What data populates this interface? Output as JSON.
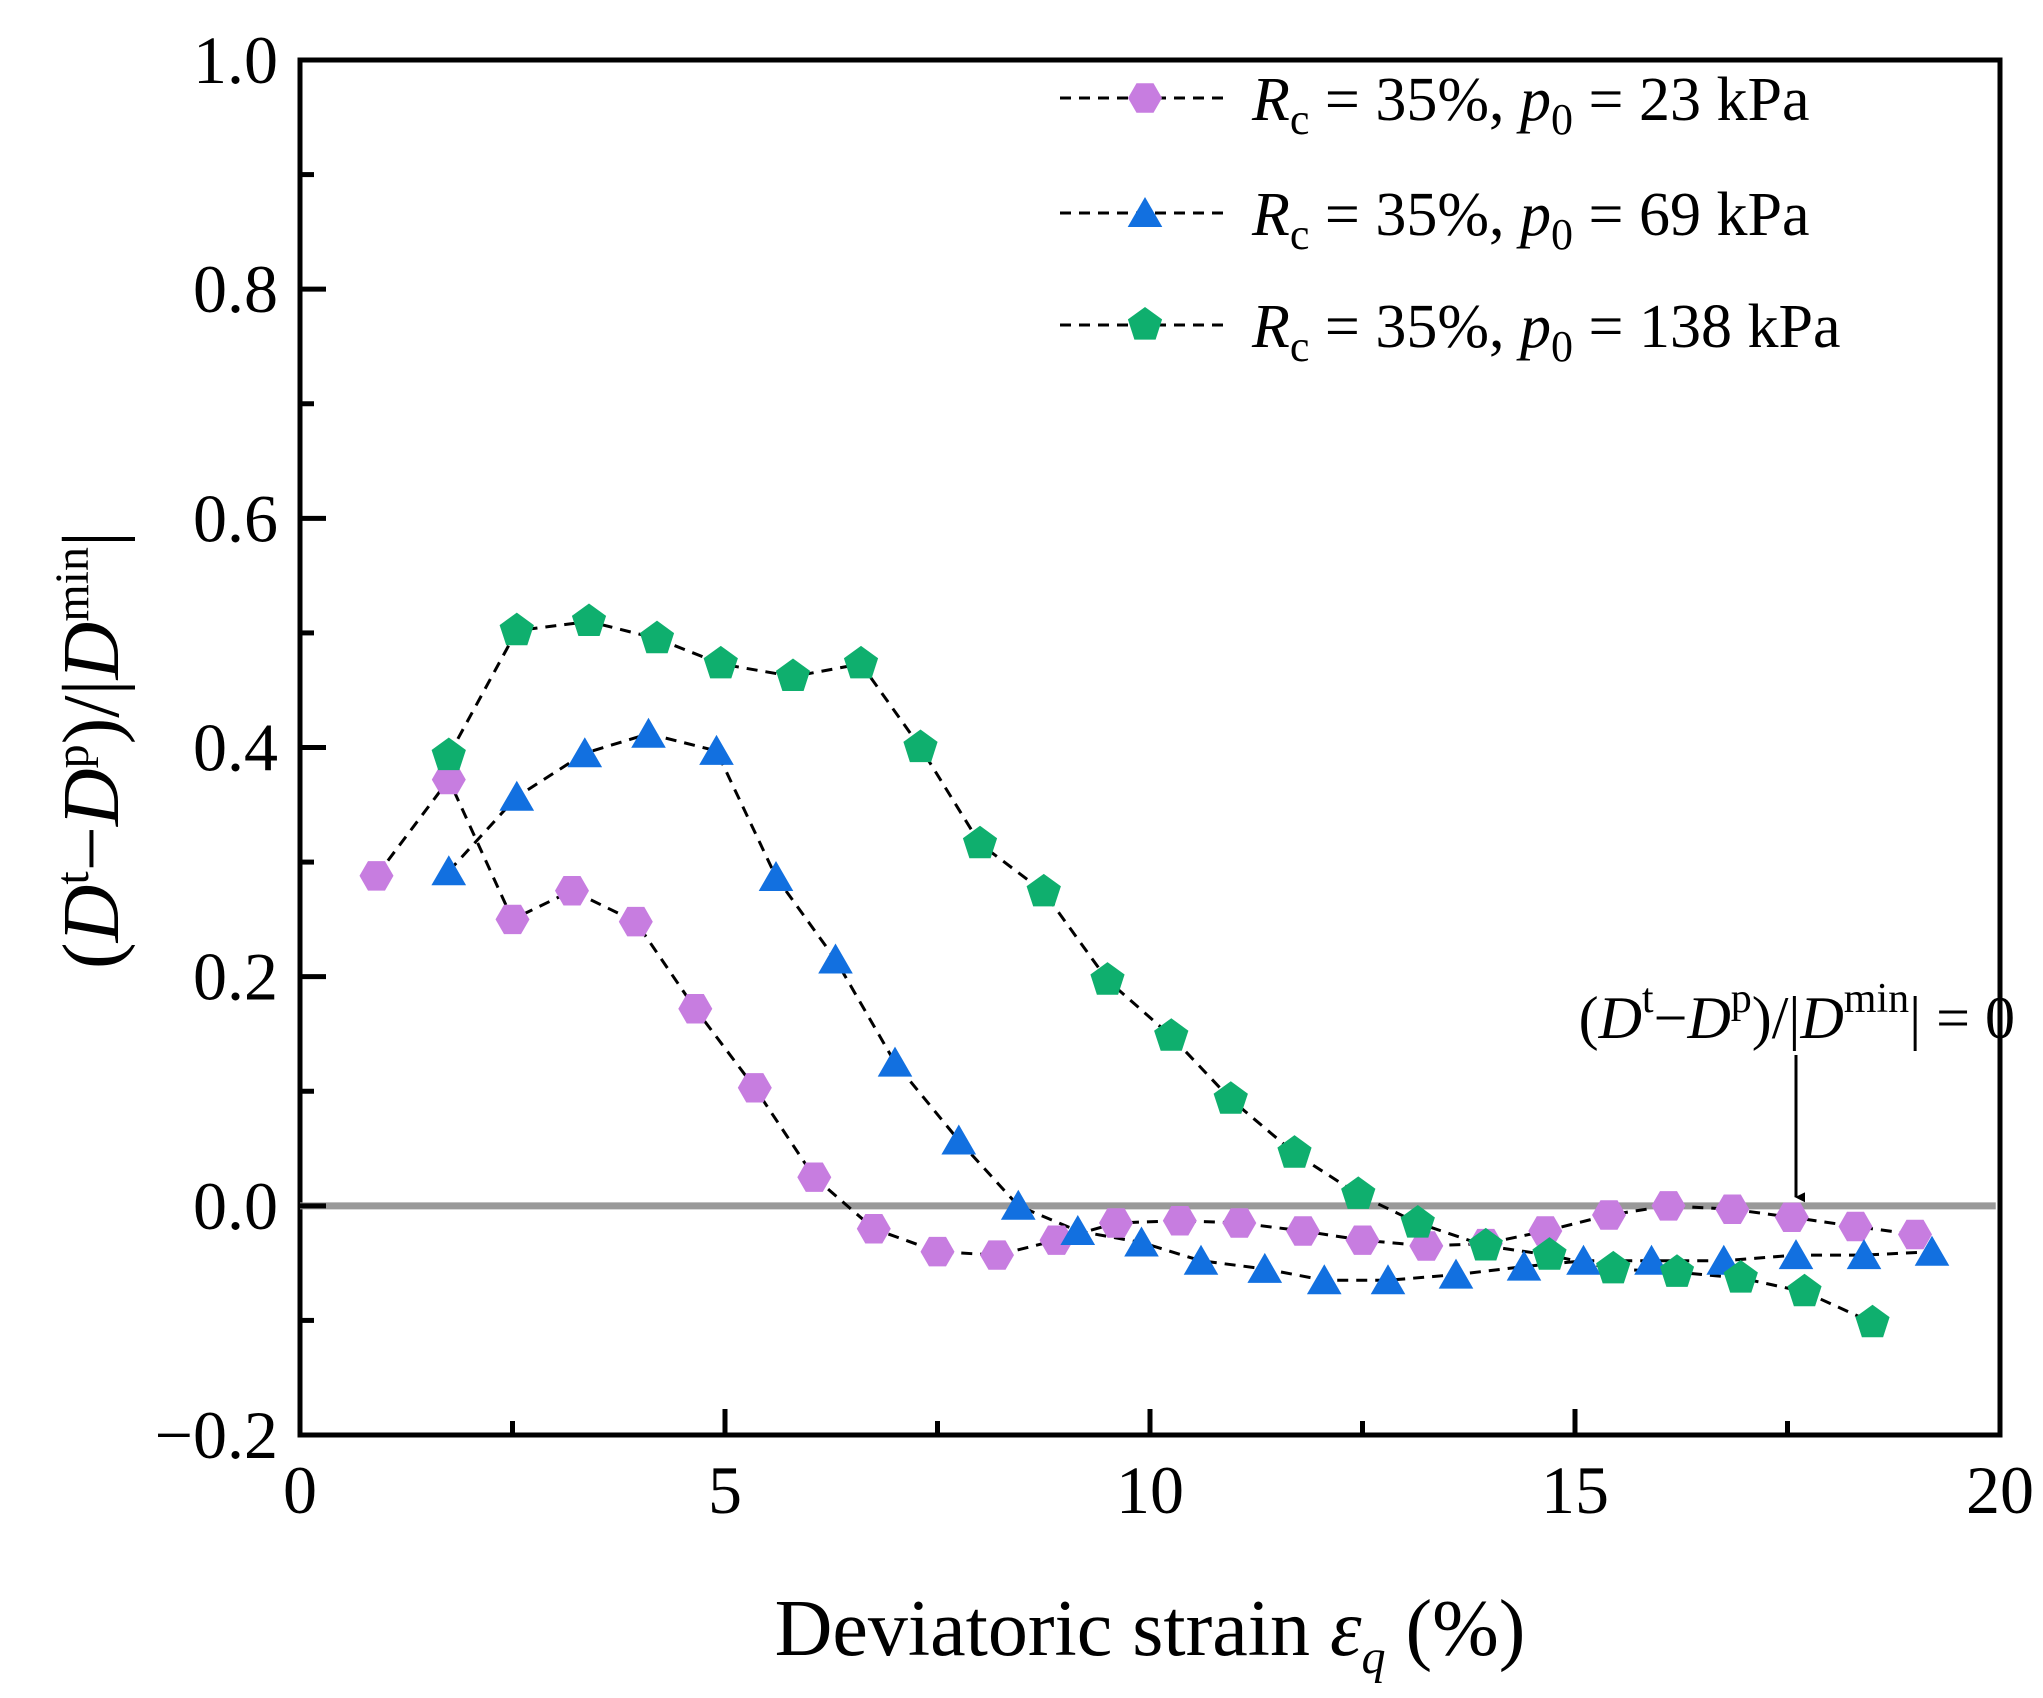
{
  "chart_data": {
    "type": "scatter",
    "title": "",
    "xlabel": {
      "prefix": "Deviatoric strain ",
      "symbol": "ε",
      "subscript": "q",
      "suffix": " (%)"
    },
    "ylabel": {
      "pre": "(",
      "d1": "D",
      "s1": "t",
      "minus": "−",
      "d2": "D",
      "s2": "p",
      "mid": ")/|",
      "d3": "D",
      "s3": "min",
      "end": "|"
    },
    "xlim": [
      0,
      20
    ],
    "ylim": [
      -0.2,
      1.0
    ],
    "x_ticks": [
      "0",
      "5",
      "10",
      "15",
      "20"
    ],
    "y_ticks": [
      "−0.2",
      "0.0",
      "0.2",
      "0.4",
      "0.6",
      "0.8",
      "1.0"
    ],
    "reference_line": {
      "y": 0,
      "color": "#999999"
    },
    "annotation": {
      "pre": "(",
      "d1": "D",
      "s1": "t",
      "minus": "−",
      "d2": "D",
      "s2": "p",
      "mid": ")/|",
      "d3": "D",
      "s3": "min",
      "end": "| = 0",
      "arrow_x": 17.6
    },
    "legend": {
      "location": "top-right"
    },
    "series": [
      {
        "name": "Rc = 35%, p0 = 23 kPa",
        "label": {
          "R": "R",
          "sub_c": "c",
          "mid": " = 35%, ",
          "p": "p",
          "sub_0": "0",
          "end": " = 23 kPa"
        },
        "marker": "hexagon",
        "color": "#C77DE0",
        "x": [
          0.9,
          1.75,
          2.5,
          3.2,
          3.95,
          4.65,
          5.35,
          6.05,
          6.75,
          7.5,
          8.2,
          8.9,
          9.6,
          10.35,
          11.05,
          11.8,
          12.5,
          13.25,
          13.95,
          14.65,
          15.4,
          16.1,
          16.85,
          17.55,
          18.3,
          19.0
        ],
        "y": [
          0.288,
          0.372,
          0.25,
          0.275,
          0.248,
          0.172,
          0.103,
          0.025,
          -0.02,
          -0.04,
          -0.043,
          -0.03,
          -0.015,
          -0.013,
          -0.015,
          -0.022,
          -0.03,
          -0.035,
          -0.033,
          -0.022,
          -0.008,
          0.0,
          -0.003,
          -0.01,
          -0.018,
          -0.025
        ]
      },
      {
        "name": "Rc = 35%, p0 = 69 kPa",
        "label": {
          "R": "R",
          "sub_c": "c",
          "mid": " = 35%, ",
          "p": "p",
          "sub_0": "0",
          "end": " = 69 kPa"
        },
        "marker": "triangle",
        "color": "#1270E0",
        "x": [
          1.75,
          2.55,
          3.35,
          4.1,
          4.9,
          5.6,
          6.3,
          7.0,
          7.75,
          8.45,
          9.15,
          9.9,
          10.6,
          11.35,
          12.05,
          12.8,
          13.6,
          14.4,
          15.1,
          15.9,
          16.75,
          17.6,
          18.4,
          19.2
        ],
        "y": [
          0.292,
          0.357,
          0.395,
          0.412,
          0.397,
          0.287,
          0.215,
          0.125,
          0.057,
          0.0,
          -0.022,
          -0.032,
          -0.048,
          -0.055,
          -0.065,
          -0.065,
          -0.06,
          -0.053,
          -0.048,
          -0.048,
          -0.048,
          -0.043,
          -0.043,
          -0.04
        ]
      },
      {
        "name": "Rc = 35%, p0 = 138 kPa",
        "label": {
          "R": "R",
          "sub_c": "c",
          "mid": " = 35%, ",
          "p": "p",
          "sub_0": "0",
          "end": " = 138 kPa"
        },
        "marker": "pentagon",
        "color": "#0FAF6E",
        "x": [
          1.75,
          2.55,
          3.4,
          4.2,
          4.95,
          5.8,
          6.6,
          7.3,
          8.0,
          8.75,
          9.5,
          10.25,
          10.95,
          11.7,
          12.45,
          13.15,
          13.95,
          14.7,
          15.45,
          16.2,
          16.95,
          17.7,
          18.5
        ],
        "y": [
          0.393,
          0.502,
          0.51,
          0.495,
          0.473,
          0.462,
          0.473,
          0.4,
          0.316,
          0.274,
          0.197,
          0.148,
          0.093,
          0.046,
          0.01,
          -0.015,
          -0.035,
          -0.043,
          -0.055,
          -0.058,
          -0.063,
          -0.075,
          -0.102
        ]
      }
    ]
  }
}
